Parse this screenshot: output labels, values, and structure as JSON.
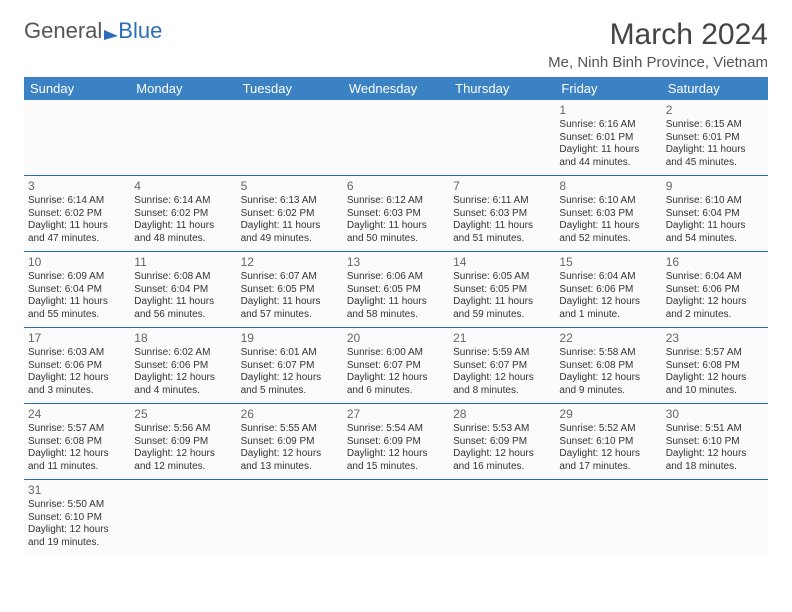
{
  "logo": {
    "part1": "General",
    "part2": "Blue"
  },
  "title": "March 2024",
  "location": "Me, Ninh Binh Province, Vietnam",
  "style": {
    "header_bg": "#3b82c4",
    "header_fg": "#ffffff",
    "row_border": "#2a6fb5",
    "cell_bg": "#fbfbfb",
    "page_bg": "#ffffff",
    "text_color": "#333333",
    "title_fontsize": 30,
    "loc_fontsize": 15,
    "dayhead_fontsize": 13,
    "cell_fontsize": 10
  },
  "weekdays": [
    "Sunday",
    "Monday",
    "Tuesday",
    "Wednesday",
    "Thursday",
    "Friday",
    "Saturday"
  ],
  "weeks": [
    [
      null,
      null,
      null,
      null,
      null,
      {
        "n": "1",
        "sr": "Sunrise: 6:16 AM",
        "ss": "Sunset: 6:01 PM",
        "d1": "Daylight: 11 hours",
        "d2": "and 44 minutes."
      },
      {
        "n": "2",
        "sr": "Sunrise: 6:15 AM",
        "ss": "Sunset: 6:01 PM",
        "d1": "Daylight: 11 hours",
        "d2": "and 45 minutes."
      }
    ],
    [
      {
        "n": "3",
        "sr": "Sunrise: 6:14 AM",
        "ss": "Sunset: 6:02 PM",
        "d1": "Daylight: 11 hours",
        "d2": "and 47 minutes."
      },
      {
        "n": "4",
        "sr": "Sunrise: 6:14 AM",
        "ss": "Sunset: 6:02 PM",
        "d1": "Daylight: 11 hours",
        "d2": "and 48 minutes."
      },
      {
        "n": "5",
        "sr": "Sunrise: 6:13 AM",
        "ss": "Sunset: 6:02 PM",
        "d1": "Daylight: 11 hours",
        "d2": "and 49 minutes."
      },
      {
        "n": "6",
        "sr": "Sunrise: 6:12 AM",
        "ss": "Sunset: 6:03 PM",
        "d1": "Daylight: 11 hours",
        "d2": "and 50 minutes."
      },
      {
        "n": "7",
        "sr": "Sunrise: 6:11 AM",
        "ss": "Sunset: 6:03 PM",
        "d1": "Daylight: 11 hours",
        "d2": "and 51 minutes."
      },
      {
        "n": "8",
        "sr": "Sunrise: 6:10 AM",
        "ss": "Sunset: 6:03 PM",
        "d1": "Daylight: 11 hours",
        "d2": "and 52 minutes."
      },
      {
        "n": "9",
        "sr": "Sunrise: 6:10 AM",
        "ss": "Sunset: 6:04 PM",
        "d1": "Daylight: 11 hours",
        "d2": "and 54 minutes."
      }
    ],
    [
      {
        "n": "10",
        "sr": "Sunrise: 6:09 AM",
        "ss": "Sunset: 6:04 PM",
        "d1": "Daylight: 11 hours",
        "d2": "and 55 minutes."
      },
      {
        "n": "11",
        "sr": "Sunrise: 6:08 AM",
        "ss": "Sunset: 6:04 PM",
        "d1": "Daylight: 11 hours",
        "d2": "and 56 minutes."
      },
      {
        "n": "12",
        "sr": "Sunrise: 6:07 AM",
        "ss": "Sunset: 6:05 PM",
        "d1": "Daylight: 11 hours",
        "d2": "and 57 minutes."
      },
      {
        "n": "13",
        "sr": "Sunrise: 6:06 AM",
        "ss": "Sunset: 6:05 PM",
        "d1": "Daylight: 11 hours",
        "d2": "and 58 minutes."
      },
      {
        "n": "14",
        "sr": "Sunrise: 6:05 AM",
        "ss": "Sunset: 6:05 PM",
        "d1": "Daylight: 11 hours",
        "d2": "and 59 minutes."
      },
      {
        "n": "15",
        "sr": "Sunrise: 6:04 AM",
        "ss": "Sunset: 6:06 PM",
        "d1": "Daylight: 12 hours",
        "d2": "and 1 minute."
      },
      {
        "n": "16",
        "sr": "Sunrise: 6:04 AM",
        "ss": "Sunset: 6:06 PM",
        "d1": "Daylight: 12 hours",
        "d2": "and 2 minutes."
      }
    ],
    [
      {
        "n": "17",
        "sr": "Sunrise: 6:03 AM",
        "ss": "Sunset: 6:06 PM",
        "d1": "Daylight: 12 hours",
        "d2": "and 3 minutes."
      },
      {
        "n": "18",
        "sr": "Sunrise: 6:02 AM",
        "ss": "Sunset: 6:06 PM",
        "d1": "Daylight: 12 hours",
        "d2": "and 4 minutes."
      },
      {
        "n": "19",
        "sr": "Sunrise: 6:01 AM",
        "ss": "Sunset: 6:07 PM",
        "d1": "Daylight: 12 hours",
        "d2": "and 5 minutes."
      },
      {
        "n": "20",
        "sr": "Sunrise: 6:00 AM",
        "ss": "Sunset: 6:07 PM",
        "d1": "Daylight: 12 hours",
        "d2": "and 6 minutes."
      },
      {
        "n": "21",
        "sr": "Sunrise: 5:59 AM",
        "ss": "Sunset: 6:07 PM",
        "d1": "Daylight: 12 hours",
        "d2": "and 8 minutes."
      },
      {
        "n": "22",
        "sr": "Sunrise: 5:58 AM",
        "ss": "Sunset: 6:08 PM",
        "d1": "Daylight: 12 hours",
        "d2": "and 9 minutes."
      },
      {
        "n": "23",
        "sr": "Sunrise: 5:57 AM",
        "ss": "Sunset: 6:08 PM",
        "d1": "Daylight: 12 hours",
        "d2": "and 10 minutes."
      }
    ],
    [
      {
        "n": "24",
        "sr": "Sunrise: 5:57 AM",
        "ss": "Sunset: 6:08 PM",
        "d1": "Daylight: 12 hours",
        "d2": "and 11 minutes."
      },
      {
        "n": "25",
        "sr": "Sunrise: 5:56 AM",
        "ss": "Sunset: 6:09 PM",
        "d1": "Daylight: 12 hours",
        "d2": "and 12 minutes."
      },
      {
        "n": "26",
        "sr": "Sunrise: 5:55 AM",
        "ss": "Sunset: 6:09 PM",
        "d1": "Daylight: 12 hours",
        "d2": "and 13 minutes."
      },
      {
        "n": "27",
        "sr": "Sunrise: 5:54 AM",
        "ss": "Sunset: 6:09 PM",
        "d1": "Daylight: 12 hours",
        "d2": "and 15 minutes."
      },
      {
        "n": "28",
        "sr": "Sunrise: 5:53 AM",
        "ss": "Sunset: 6:09 PM",
        "d1": "Daylight: 12 hours",
        "d2": "and 16 minutes."
      },
      {
        "n": "29",
        "sr": "Sunrise: 5:52 AM",
        "ss": "Sunset: 6:10 PM",
        "d1": "Daylight: 12 hours",
        "d2": "and 17 minutes."
      },
      {
        "n": "30",
        "sr": "Sunrise: 5:51 AM",
        "ss": "Sunset: 6:10 PM",
        "d1": "Daylight: 12 hours",
        "d2": "and 18 minutes."
      }
    ],
    [
      {
        "n": "31",
        "sr": "Sunrise: 5:50 AM",
        "ss": "Sunset: 6:10 PM",
        "d1": "Daylight: 12 hours",
        "d2": "and 19 minutes."
      },
      null,
      null,
      null,
      null,
      null,
      null
    ]
  ]
}
